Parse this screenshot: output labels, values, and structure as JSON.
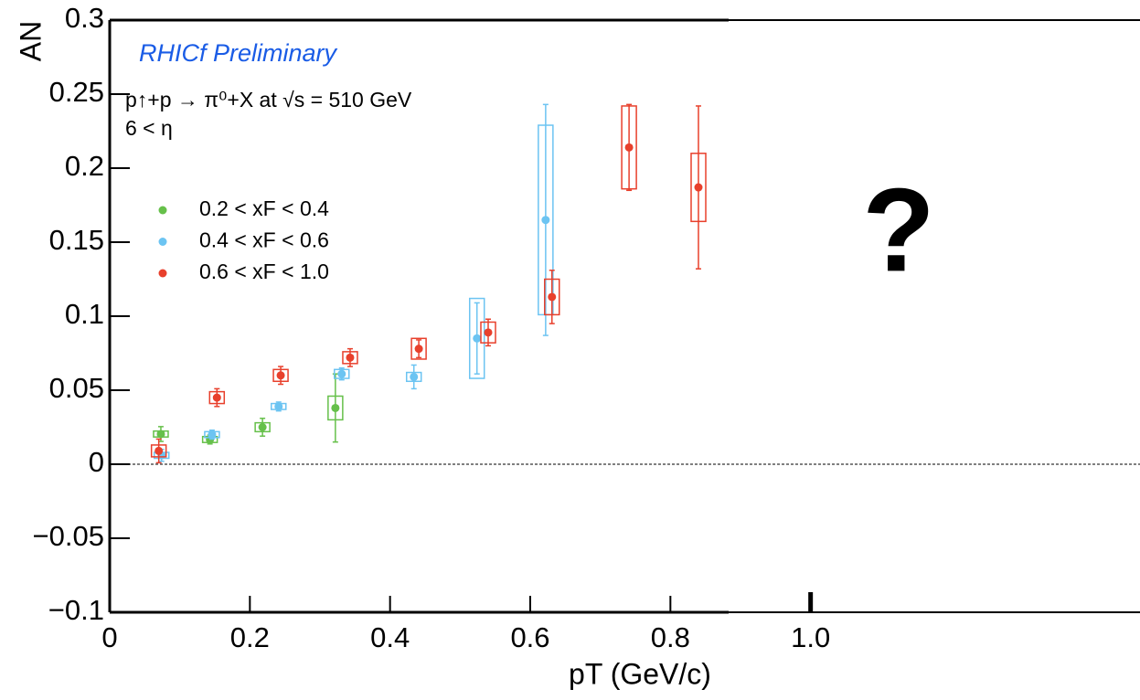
{
  "chart_data": {
    "type": "scatter",
    "title": "RHICf Preliminary",
    "subtitle": "p↑+p → π⁰+X at √s = 510 GeV",
    "annotations": [
      "6 < η",
      "?"
    ],
    "x_label": "pT (GeV/c)",
    "y_label": "AN",
    "xlim": [
      0,
      1.47
    ],
    "ylim": [
      -0.1,
      0.3
    ],
    "xticks": [
      0,
      0.2,
      0.4,
      0.6,
      0.8,
      {
        "value": 1,
        "label": "1.0"
      }
    ],
    "yticks": [
      {
        "value": -0.1,
        "label": "−0.1"
      },
      {
        "value": -0.05,
        "label": "−0.05"
      },
      0,
      0.05,
      0.1,
      0.15,
      0.2,
      0.25,
      0.3
    ],
    "reference_line": 0,
    "legend": "upper left",
    "series": [
      {
        "name": "0.2 < xF < 0.4",
        "color": "#66c04a",
        "x": [
          0.073,
          0.143,
          0.218,
          0.322
        ],
        "values": [
          0.0204,
          0.0167,
          0.025,
          0.038
        ],
        "errors": [
          0.005,
          0.003,
          0.006,
          0.023
        ],
        "syst": [
          0.002,
          0.002,
          0.003,
          0.008
        ]
      },
      {
        "name": "0.4 < xF < 0.6",
        "color": "#6cc4f2",
        "x": [
          0.074,
          0.146,
          0.241,
          0.331,
          0.434,
          0.524,
          0.622
        ],
        "values": [
          0.006,
          0.02,
          0.039,
          0.061,
          0.059,
          0.085,
          0.165
        ],
        "errors": [
          0.004,
          0.003,
          0.003,
          0.004,
          0.008,
          0.024,
          0.078
        ],
        "syst": [
          0.002,
          0.002,
          0.002,
          0.003,
          0.003,
          0.027,
          0.064
        ]
      },
      {
        "name": "0.6 < xF < 1.0",
        "color": "#e8402c",
        "x": [
          0.07,
          0.153,
          0.244,
          0.343,
          0.441,
          0.54,
          0.631,
          0.741,
          0.84
        ],
        "values": [
          0.009,
          0.045,
          0.06,
          0.072,
          0.078,
          0.089,
          0.113,
          0.214,
          0.187
        ],
        "errors": [
          0.008,
          0.006,
          0.006,
          0.006,
          0.006,
          0.009,
          0.018,
          0.029,
          0.055
        ],
        "syst": [
          0.004,
          0.004,
          0.004,
          0.004,
          0.007,
          0.007,
          0.012,
          0.028,
          0.023
        ]
      }
    ]
  }
}
